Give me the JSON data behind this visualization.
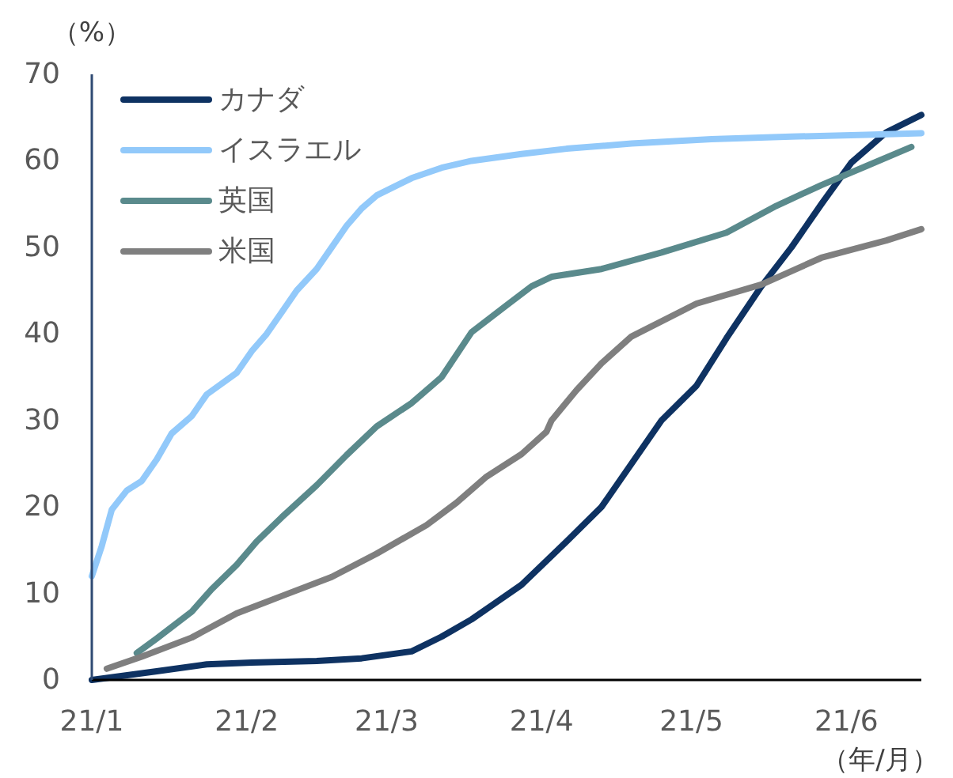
{
  "chart_data": {
    "type": "line",
    "ylabel": "（%）",
    "xlabel": "（年/月）",
    "xlim": [
      "--01-01",
      "--06-16"
    ],
    "xticks": [
      {
        "value": "--01-01",
        "label": "21/1"
      },
      {
        "value": "--02-01",
        "label": "21/2"
      },
      {
        "value": "--03-01",
        "label": "21/3"
      },
      {
        "value": "--04-01",
        "label": "21/4"
      },
      {
        "value": "--05-01",
        "label": "21/5"
      },
      {
        "value": "--06-01",
        "label": "21/6"
      }
    ],
    "ylim": [
      0,
      70
    ],
    "yticks": [
      0,
      10,
      20,
      30,
      40,
      50,
      60,
      70
    ],
    "legend": "top left",
    "grid": false,
    "series": [
      {
        "name": "カナダ",
        "color": "#0e3262",
        "x": [
          "--01-01",
          "--01-14",
          "--01-24",
          "--02-02",
          "--02-15",
          "--02-24",
          "--03-06",
          "--03-12",
          "--03-18",
          "--03-28",
          "--04-06",
          "--04-13",
          "--04-19",
          "--04-25",
          "--05-02",
          "--05-08",
          "--05-15",
          "--05-21",
          "--05-27",
          "--06-02",
          "--06-09",
          "--06-16"
        ],
        "values": [
          0,
          1,
          1.8,
          2,
          2.2,
          2.5,
          3.3,
          5,
          7,
          11,
          16,
          20,
          25,
          30,
          34,
          39.5,
          45.5,
          50,
          55,
          59.8,
          63.3,
          65.3
        ]
      },
      {
        "name": "イスラエル",
        "color": "#92c9fa",
        "x": [
          "--01-01",
          "--01-03",
          "--01-05",
          "--01-08",
          "--01-11",
          "--01-14",
          "--01-17",
          "--01-21",
          "--01-24",
          "--01-30",
          "--02-02",
          "--02-05",
          "--02-08",
          "--02-11",
          "--02-15",
          "--02-18",
          "--02-21",
          "--02-24",
          "--02-27",
          "--03-06",
          "--03-12",
          "--03-18",
          "--03-28",
          "--04-06",
          "--04-19",
          "--05-05",
          "--05-21",
          "--06-05",
          "--06-16"
        ],
        "values": [
          12,
          15.5,
          19.7,
          21.9,
          23,
          25.5,
          28.5,
          30.5,
          33,
          35.5,
          38,
          40,
          42.5,
          45,
          47.5,
          50,
          52.5,
          54.5,
          56,
          58,
          59.2,
          60,
          60.8,
          61.4,
          62,
          62.5,
          62.8,
          63,
          63.2
        ]
      },
      {
        "name": "英国",
        "color": "#5a8a8c",
        "x": [
          "--01-10",
          "--01-14",
          "--01-21",
          "--01-25",
          "--01-30",
          "--02-03",
          "--02-08",
          "--02-15",
          "--02-21",
          "--02-27",
          "--03-06",
          "--03-12",
          "--03-18",
          "--03-25",
          "--03-30",
          "--04-03",
          "--04-13",
          "--04-25",
          "--05-08",
          "--05-18",
          "--05-27",
          "--06-05",
          "--06-14"
        ],
        "values": [
          3.1,
          4.8,
          7.9,
          10.5,
          13.3,
          16,
          18.8,
          22.5,
          26,
          29.3,
          32,
          35,
          40.2,
          43.3,
          45.5,
          46.6,
          47.5,
          49.4,
          51.7,
          54.8,
          57.2,
          59.4,
          61.6
        ]
      },
      {
        "name": "米国",
        "color": "#7f7f7f",
        "x": [
          "--01-04",
          "--01-11",
          "--01-21",
          "--01-30",
          "--02-08",
          "--02-18",
          "--02-27",
          "--03-09",
          "--03-15",
          "--03-21",
          "--03-28",
          "--04-02",
          "--04-03",
          "--04-08",
          "--04-13",
          "--04-19",
          "--05-02",
          "--05-15",
          "--05-27",
          "--06-09",
          "--06-16"
        ],
        "values": [
          1.3,
          2.7,
          4.9,
          7.7,
          9.7,
          11.9,
          14.6,
          17.9,
          20.5,
          23.5,
          26.1,
          28.7,
          30,
          33.5,
          36.6,
          39.7,
          43.5,
          45.7,
          48.8,
          50.8,
          52.1
        ]
      }
    ]
  }
}
